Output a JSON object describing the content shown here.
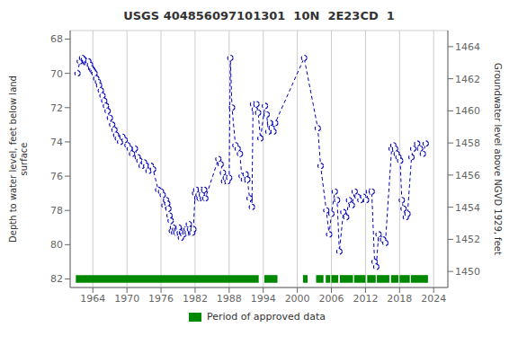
{
  "chart_data": {
    "type": "line",
    "title": "USGS 404856097101301  10N  2E23CD  1",
    "y_label": "Depth to water level, feet below land\nsurface",
    "y2_label": "Groundwater level above NGVD 1929, feet",
    "xlim": [
      1960.0,
      2026.5
    ],
    "xticks": [
      1964,
      1970,
      1976,
      1982,
      1988,
      1994,
      2000,
      2006,
      2012,
      2018,
      2024
    ],
    "ylim": [
      82.5,
      67.5
    ],
    "yticks": [
      68,
      70,
      72,
      74,
      76,
      78,
      80,
      82
    ],
    "y2lim": [
      1449.0,
      1465.0
    ],
    "y2ticks": [
      1464,
      1462,
      1460,
      1458,
      1456,
      1454,
      1452,
      1450
    ],
    "grid": true,
    "legend": "bottom",
    "x": [
      1961.3,
      1961.7,
      1962.1,
      1962.4,
      1962.6,
      1962.8,
      1963.0,
      1963.2,
      1963.5,
      1963.7,
      1963.9,
      1964.1,
      1964.3,
      1964.6,
      1964.9,
      1965.1,
      1965.4,
      1965.7,
      1966.0,
      1966.3,
      1966.6,
      1967.0,
      1967.4,
      1967.8,
      1968.1,
      1968.4,
      1968.8,
      1969.2,
      1969.6,
      1970.1,
      1970.5,
      1970.9,
      1971.4,
      1971.9,
      1972.2,
      1972.6,
      1973.0,
      1973.4,
      1973.8,
      1974.2,
      1974.6,
      1975.5,
      1976.0,
      1976.3,
      1976.6,
      1976.9,
      1977.1,
      1977.3,
      1977.5,
      1977.7,
      1977.9,
      1978.1,
      1978.3,
      1978.5,
      1978.7,
      1978.9,
      1979.1,
      1979.3,
      1979.5,
      1979.7,
      1979.9,
      1980.1,
      1980.3,
      1980.5,
      1980.7,
      1980.9,
      1981.1,
      1981.3,
      1981.5,
      1981.7,
      1982.0,
      1982.2,
      1982.4,
      1982.6,
      1982.8,
      1983.0,
      1983.2,
      1983.4,
      1983.6,
      1983.8,
      1986.1,
      1986.5,
      1986.9,
      1987.1,
      1987.4,
      1987.7,
      1988.0,
      1988.2,
      1988.5,
      1989.1,
      1989.5,
      1989.9,
      1990.2,
      1990.6,
      1990.9,
      1991.2,
      1991.6,
      1992.0,
      1992.2,
      1992.5,
      1992.8,
      1993.1,
      1993.5,
      1994.3,
      1994.6,
      1994.9,
      1995.2,
      1995.5,
      1995.8,
      1996.1,
      2001.2,
      2003.6,
      2004.1,
      2005.1,
      2005.6,
      2006.0,
      2006.6,
      2007.0,
      2007.4,
      2008.1,
      2008.6,
      2009.1,
      2009.6,
      2010.1,
      2010.6,
      2011.1,
      2011.6,
      2012.1,
      2012.6,
      2013.1,
      2013.6,
      2013.9,
      2014.3,
      2014.7,
      2015.1,
      2015.5,
      2016.6,
      2016.9,
      2017.2,
      2017.5,
      2017.8,
      2018.1,
      2018.4,
      2018.7,
      2019.1,
      2019.4,
      2020.1,
      2020.4,
      2021.1,
      2021.6,
      2022.1,
      2022.6
    ],
    "series": [
      {
        "type": "line",
        "color": "#0000bb",
        "line_style": "dashed",
        "marker": "circle",
        "values": [
          70.0,
          69.3,
          69.1,
          69.2,
          69.3,
          69.4,
          69.4,
          69.3,
          69.5,
          69.7,
          69.8,
          69.9,
          70.0,
          70.3,
          70.5,
          70.7,
          71.0,
          71.3,
          71.6,
          71.9,
          72.2,
          72.6,
          73.0,
          73.3,
          73.6,
          73.8,
          74.0,
          73.7,
          73.9,
          74.2,
          74.4,
          74.7,
          74.4,
          74.9,
          75.1,
          75.4,
          75.2,
          75.4,
          75.7,
          75.4,
          75.6,
          76.8,
          76.9,
          77.1,
          77.7,
          77.4,
          77.6,
          77.9,
          78.3,
          78.6,
          79.2,
          79.0,
          79.3,
          79.1,
          79.3,
          79.1,
          79.0,
          79.3,
          79.6,
          79.3,
          79.4,
          79.1,
          79.3,
          79.1,
          79.3,
          78.8,
          79.1,
          79.3,
          79.3,
          79.1,
          77.0,
          76.8,
          77.3,
          77.1,
          77.3,
          76.8,
          77.1,
          77.3,
          76.8,
          77.3,
          75.0,
          75.3,
          75.8,
          76.3,
          76.1,
          76.3,
          76.1,
          69.1,
          72.0,
          74.2,
          74.4,
          74.7,
          76.0,
          76.2,
          75.9,
          76.2,
          77.3,
          77.8,
          71.8,
          72.1,
          71.8,
          72.3,
          73.8,
          71.9,
          72.4,
          73.4,
          72.9,
          73.2,
          73.4,
          72.9,
          69.1,
          73.2,
          75.4,
          78.0,
          79.4,
          78.2,
          76.9,
          77.4,
          80.4,
          78.1,
          78.4,
          77.4,
          77.7,
          76.9,
          77.2,
          77.4,
          77.2,
          77.4,
          76.9,
          76.9,
          81.0,
          81.3,
          79.4,
          79.7,
          79.7,
          79.9,
          74.4,
          74.2,
          74.4,
          74.7,
          74.9,
          75.1,
          77.4,
          77.9,
          78.4,
          78.2,
          74.9,
          74.4,
          74.1,
          74.4,
          74.7,
          74.1
        ]
      },
      {
        "name": "Period of approved data",
        "type": "bar",
        "orientation": "horizontal",
        "color": "#008800",
        "y": 82.0,
        "height": 0.45,
        "segments": [
          [
            1961.0,
            1993.2
          ],
          [
            1994.2,
            1996.5
          ],
          [
            2001.0,
            2001.8
          ],
          [
            2003.3,
            2004.6
          ],
          [
            2005.0,
            2005.8
          ],
          [
            2006.0,
            2007.2
          ],
          [
            2007.5,
            2009.8
          ],
          [
            2010.0,
            2012.0
          ],
          [
            2012.3,
            2013.8
          ],
          [
            2014.0,
            2016.2
          ],
          [
            2016.5,
            2017.8
          ],
          [
            2018.0,
            2019.8
          ],
          [
            2020.0,
            2023.0
          ]
        ]
      }
    ]
  }
}
